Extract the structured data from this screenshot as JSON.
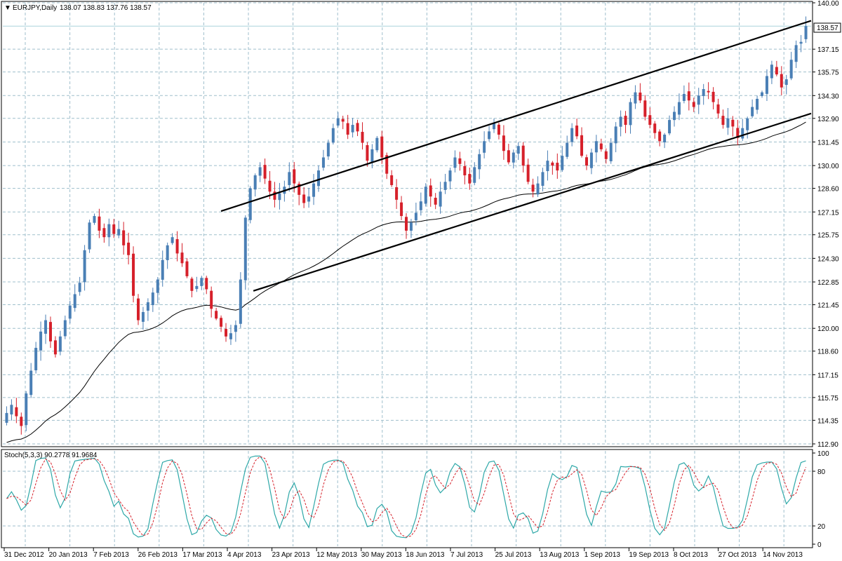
{
  "header": {
    "symbol": "EURJPY,Daily",
    "ohlc": "138.07 138.83 137.76 138.57"
  },
  "price_badge": "138.57",
  "colors": {
    "bull": "#4a7fb5",
    "bear": "#d6202a",
    "stoch_main": "#2ea8a8",
    "stoch_signal": "#d6202a",
    "grid": "#9fbfcc",
    "line": "#000000"
  },
  "x_axis_labels": [
    "31 Dec 2012",
    "20 Jan 2013",
    "7 Feb 2013",
    "26 Feb 2013",
    "17 Mar 2013",
    "4 Apr 2013",
    "23 Apr 2013",
    "12 May 2013",
    "30 May 2013",
    "18 Jun 2013",
    "7 Jul 2013",
    "25 Jul 2013",
    "13 Aug 2013",
    "1 Sep 2013",
    "19 Sep 2013",
    "8 Oct 2013",
    "27 Oct 2013",
    "14 Nov 2013"
  ],
  "chart_data": [
    {
      "type": "candlestick",
      "title": "EURJPY,Daily",
      "y_ticks": [
        "140.00",
        "138.57",
        "137.15",
        "135.75",
        "134.30",
        "132.90",
        "131.45",
        "130.00",
        "128.60",
        "127.15",
        "125.75",
        "124.30",
        "122.85",
        "121.45",
        "120.00",
        "118.60",
        "117.15",
        "115.75",
        "114.35",
        "112.90"
      ],
      "ylim": [
        112.9,
        140.0
      ],
      "close_path": [
        114.8,
        115.3,
        114.6,
        114.0,
        116.0,
        117.4,
        118.8,
        119.8,
        120.5,
        119.2,
        118.4,
        119.5,
        120.5,
        121.4,
        122.1,
        122.8,
        124.8,
        126.5,
        126.9,
        126.0,
        125.6,
        126.4,
        125.8,
        126.1,
        125.1,
        124.5,
        122.0,
        120.5,
        121.0,
        121.6,
        122.2,
        123.0,
        124.2,
        125.1,
        125.6,
        124.6,
        124.0,
        123.2,
        122.3,
        122.6,
        123.1,
        122.4,
        121.2,
        120.6,
        120.1,
        119.5,
        119.7,
        120.2,
        123.0,
        126.8,
        128.6,
        129.4,
        129.9,
        129.2,
        128.4,
        127.9,
        128.3,
        128.7,
        129.6,
        128.9,
        128.2,
        127.7,
        128.1,
        128.9,
        129.7,
        130.5,
        131.4,
        132.3,
        132.9,
        132.7,
        131.9,
        132.5,
        132.1,
        131.4,
        130.3,
        131.0,
        131.7,
        130.5,
        129.5,
        128.8,
        127.9,
        126.9,
        126.0,
        126.5,
        127.1,
        127.8,
        128.7,
        128.1,
        127.6,
        128.4,
        129.0,
        129.7,
        130.5,
        130.1,
        129.4,
        128.9,
        129.9,
        130.7,
        131.5,
        132.1,
        132.6,
        131.9,
        130.9,
        130.2,
        130.8,
        131.2,
        130.0,
        129.0,
        128.4,
        128.9,
        129.6,
        130.3,
        130.0,
        129.7,
        130.6,
        131.4,
        132.3,
        131.8,
        130.6,
        130.0,
        130.8,
        131.5,
        131.0,
        130.4,
        131.4,
        132.4,
        133.0,
        132.5,
        133.9,
        134.5,
        134.0,
        133.0,
        132.5,
        132.0,
        131.5,
        131.9,
        132.8,
        133.3,
        133.9,
        134.4,
        134.0,
        133.6,
        134.3,
        134.7,
        134.5,
        133.9,
        133.2,
        132.5,
        132.9,
        132.4,
        131.7,
        132.3,
        132.9,
        133.6,
        134.1,
        134.5,
        135.5,
        136.2,
        135.6,
        134.8,
        135.3,
        136.5,
        137.4,
        137.6,
        138.57
      ],
      "series": [
        {
          "name": "EURJPY"
        },
        {
          "values_desc": "moving average",
          "start_value": 112.9
        }
      ],
      "trendlines": [
        {
          "from": [
            0.27,
            127.2
          ],
          "to": [
            1.0,
            138.9
          ]
        },
        {
          "from": [
            0.31,
            122.3
          ],
          "to": [
            1.0,
            133.2
          ]
        }
      ]
    },
    {
      "type": "line",
      "title": "Stoch(5,3,3) 90.2778 91.9684",
      "y_ticks": [
        "100",
        "80",
        "20",
        "0"
      ],
      "ylim": [
        0,
        100
      ],
      "series": [
        {
          "name": "main"
        },
        {
          "name": "signal"
        }
      ]
    }
  ]
}
